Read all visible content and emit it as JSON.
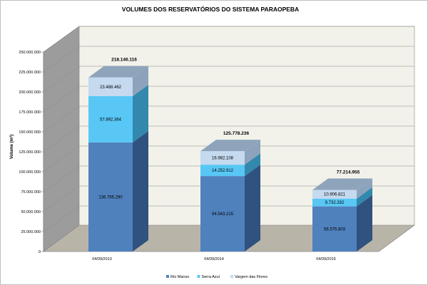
{
  "chart_data": {
    "type": "bar",
    "stacked": true,
    "three_d": true,
    "title": "VOLUMES DOS RESERVATÓRIOS DO SISTEMA PARAOPEBA",
    "ylabel_main": "Volume (m",
    "ylabel_sup": "3",
    "ylabel_end": ")",
    "ylim": [
      0,
      250000000
    ],
    "y_ticks": [
      0,
      25000000,
      50000000,
      75000000,
      100000000,
      125000000,
      150000000,
      175000000,
      200000000,
      225000000,
      250000000
    ],
    "y_tick_labels": [
      "0",
      "25.000.000",
      "50.000.000",
      "75.000.000",
      "100.000.000",
      "125.000.000",
      "150.000.000",
      "175.000.000",
      "200.000.000",
      "225.000.000",
      "250.000.000"
    ],
    "categories": [
      "04/09/2013",
      "04/09/2014",
      "04/09/2015"
    ],
    "series": [
      {
        "name": "Rio Manso",
        "values": [
          136765290,
          94543215,
          56575803
        ],
        "labels": [
          "136.765.290",
          "94.543.215",
          "56.575.803"
        ],
        "front": "#4f81bd",
        "side": "#2f527e",
        "top": "#6f98cc"
      },
      {
        "name": "Serra Azul",
        "values": [
          57892364,
          14252912,
          9732332
        ],
        "labels": [
          "57.892.364",
          "14.252.912",
          "9.732.332"
        ],
        "front": "#58c7f5",
        "side": "#3288ad",
        "top": "#8fdcfb"
      },
      {
        "name": "Vargem das Flores",
        "values": [
          23488462,
          16982108,
          10906821
        ],
        "labels": [
          "23.488.462",
          "16.982.108",
          "10.906.821"
        ],
        "front": "#c5d9ef",
        "side": "#8da3bb",
        "top": "#8ea4bb"
      }
    ],
    "totals": [
      218146116,
      125778236,
      77214955
    ],
    "total_labels": [
      "218.146.116",
      "125.778.236",
      "77.214.955"
    ],
    "legend_position": "bottom",
    "grid": true
  }
}
